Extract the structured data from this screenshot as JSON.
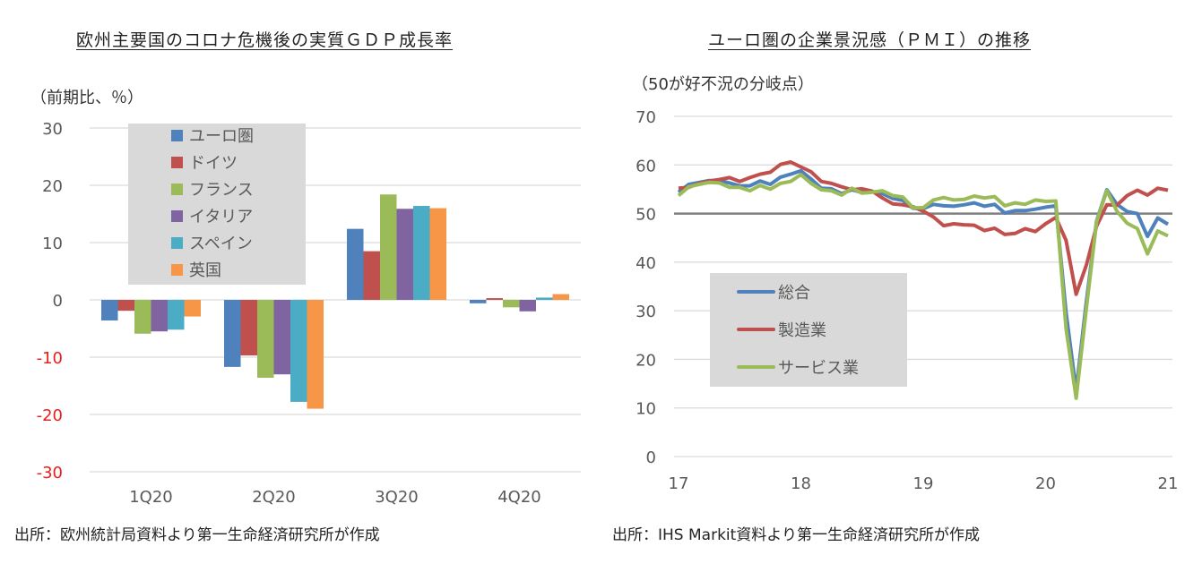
{
  "left": {
    "title": "欧州主要国のコロナ危機後の実質ＧＤＰ成長率",
    "unit": "（前期比、％）",
    "source": "出所：欧州統計局資料より第一生命経済研究所が作成"
  },
  "right": {
    "title": "ユーロ圏の企業景況感（ＰＭＩ）の推移",
    "unit": "（50が好不況の分岐点）",
    "source": "出所：IHS Markit資料より第一生命経済研究所が作成"
  },
  "chart_data": [
    {
      "type": "bar",
      "title": "欧州主要国のコロナ危機後の実質ＧＤＰ成長率",
      "ylabel": "（前期比、％）",
      "xlabel": "",
      "ylim": [
        -30,
        30
      ],
      "yticks": [
        "30",
        "20",
        "10",
        "0",
        "-10",
        "-20",
        "-30"
      ],
      "ytick_values": [
        30,
        20,
        10,
        0,
        -10,
        -20,
        -30
      ],
      "negative_tick_color": "#e8201d",
      "grid": true,
      "legend_position": "top-left inside",
      "categories": [
        "1Q20",
        "2Q20",
        "3Q20",
        "4Q20"
      ],
      "series": [
        {
          "name": "ユーロ圏",
          "color": "#4f81bd",
          "values": [
            -3.6,
            -11.7,
            12.4,
            -0.6
          ]
        },
        {
          "name": "ドイツ",
          "color": "#c0504d",
          "values": [
            -1.9,
            -9.7,
            8.5,
            0.3
          ]
        },
        {
          "name": "フランス",
          "color": "#9bbb59",
          "values": [
            -5.9,
            -13.6,
            18.4,
            -1.3
          ]
        },
        {
          "name": "イタリア",
          "color": "#8064a2",
          "values": [
            -5.5,
            -13.0,
            15.9,
            -2.0
          ]
        },
        {
          "name": "スペイン",
          "color": "#4bacc6",
          "values": [
            -5.2,
            -17.8,
            16.4,
            0.4
          ]
        },
        {
          "name": "英国",
          "color": "#f79646",
          "values": [
            -2.9,
            -19.0,
            16.0,
            1.0
          ]
        }
      ]
    },
    {
      "type": "line",
      "title": "ユーロ圏の企業景況感（ＰＭＩ）の推移",
      "ylabel": "（50が好不況の分岐点）",
      "xlabel": "",
      "ylim": [
        0,
        70
      ],
      "yticks": [
        "70",
        "60",
        "50",
        "40",
        "30",
        "20",
        "10",
        "0"
      ],
      "ytick_values": [
        70,
        60,
        50,
        40,
        30,
        20,
        10,
        0
      ],
      "xlim": [
        2017,
        2021
      ],
      "xticks": [
        "17",
        "18",
        "19",
        "20",
        "21"
      ],
      "xtick_values": [
        2017,
        2018,
        2019,
        2020,
        2021
      ],
      "reference_line": 50,
      "grid": true,
      "legend_position": "bottom-left inside",
      "x_start": 2017,
      "x_step_months": 1,
      "series": [
        {
          "name": "総合",
          "color": "#4f81bd",
          "values": [
            54.4,
            56.0,
            56.4,
            56.8,
            56.8,
            56.3,
            55.7,
            55.7,
            56.7,
            56.0,
            57.5,
            58.1,
            58.8,
            57.1,
            55.2,
            55.1,
            54.1,
            54.9,
            54.3,
            54.5,
            54.1,
            53.1,
            52.7,
            51.1,
            51.0,
            51.9,
            51.6,
            51.5,
            51.8,
            52.2,
            51.5,
            51.9,
            50.1,
            50.6,
            50.6,
            50.9,
            51.3,
            51.6,
            29.7,
            13.6,
            31.9,
            48.5,
            54.9,
            51.9,
            50.4,
            50.0,
            45.3,
            49.1,
            47.8
          ]
        },
        {
          "name": "製造業",
          "color": "#c0504d",
          "values": [
            55.2,
            55.4,
            56.2,
            56.7,
            57.0,
            57.4,
            56.6,
            57.4,
            58.1,
            58.5,
            60.1,
            60.6,
            59.6,
            58.6,
            56.6,
            56.2,
            55.5,
            54.9,
            55.1,
            54.6,
            53.2,
            52.0,
            51.8,
            51.4,
            50.5,
            49.3,
            47.5,
            47.9,
            47.7,
            47.6,
            46.5,
            47.0,
            45.7,
            45.9,
            46.9,
            46.3,
            47.9,
            49.2,
            44.5,
            33.4,
            39.4,
            47.4,
            51.8,
            51.7,
            53.7,
            54.8,
            53.8,
            55.2,
            54.8
          ]
        },
        {
          "name": "サービス業",
          "color": "#9bbb59",
          "values": [
            53.7,
            55.5,
            56.0,
            56.4,
            56.3,
            55.4,
            55.4,
            54.7,
            55.8,
            55.0,
            56.2,
            56.6,
            58.0,
            56.2,
            54.9,
            54.7,
            53.8,
            55.2,
            54.2,
            54.4,
            54.7,
            53.7,
            53.4,
            51.2,
            51.2,
            52.8,
            53.3,
            52.8,
            52.9,
            53.6,
            53.2,
            53.5,
            51.6,
            52.2,
            51.9,
            52.8,
            52.5,
            52.6,
            26.4,
            12.0,
            30.5,
            48.3,
            54.7,
            50.5,
            48.0,
            46.9,
            41.7,
            46.4,
            45.4
          ]
        }
      ]
    }
  ]
}
